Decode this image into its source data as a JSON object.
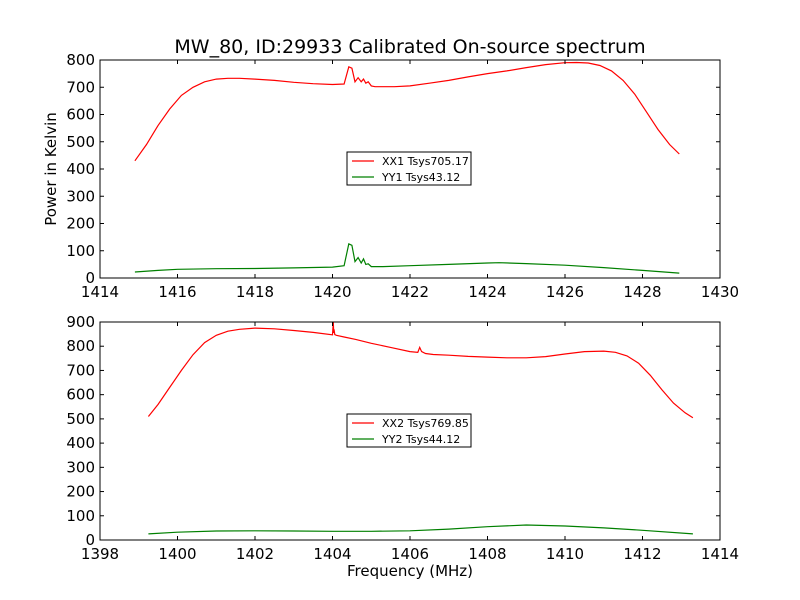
{
  "figure_title": "MW_80, ID:29933 Calibrated On-source spectrum",
  "chart_data": [
    {
      "type": "line",
      "title": "MW_80, ID:29933 Calibrated On-source spectrum",
      "xlabel": "",
      "ylabel": "Power in Kelvin",
      "xlim": [
        1414,
        1430
      ],
      "ylim": [
        0,
        800
      ],
      "xticks": [
        1414,
        1416,
        1418,
        1420,
        1422,
        1424,
        1426,
        1428,
        1430
      ],
      "yticks": [
        0,
        100,
        200,
        300,
        400,
        500,
        600,
        700,
        800
      ],
      "legend_position": "center",
      "grid": false,
      "series": [
        {
          "name": "XX1 Tsys705.17",
          "color": "#ff0000",
          "x": [
            1414.9,
            1415.2,
            1415.5,
            1415.8,
            1416.1,
            1416.4,
            1416.7,
            1417.0,
            1417.3,
            1417.6,
            1418.0,
            1418.5,
            1419.0,
            1419.5,
            1420.0,
            1420.3,
            1420.42,
            1420.5,
            1420.58,
            1420.66,
            1420.74,
            1420.8,
            1420.86,
            1420.92,
            1421.0,
            1421.1,
            1421.3,
            1421.6,
            1422.0,
            1422.5,
            1423.0,
            1423.5,
            1424.0,
            1424.5,
            1425.0,
            1425.5,
            1426.0,
            1426.3,
            1426.6,
            1426.9,
            1427.2,
            1427.5,
            1427.8,
            1428.1,
            1428.4,
            1428.7,
            1428.95
          ],
          "y": [
            430,
            490,
            560,
            620,
            670,
            700,
            720,
            730,
            733,
            733,
            730,
            725,
            718,
            713,
            710,
            712,
            775,
            770,
            720,
            735,
            720,
            730,
            715,
            720,
            705,
            702,
            702,
            702,
            705,
            715,
            725,
            738,
            750,
            760,
            772,
            783,
            790,
            791,
            789,
            780,
            760,
            725,
            675,
            610,
            545,
            490,
            455
          ]
        },
        {
          "name": "YY1 Tsys43.12",
          "color": "#008000",
          "x": [
            1414.9,
            1415.5,
            1416.0,
            1417.0,
            1418.0,
            1419.0,
            1420.0,
            1420.3,
            1420.42,
            1420.5,
            1420.58,
            1420.66,
            1420.74,
            1420.8,
            1420.86,
            1420.92,
            1421.0,
            1421.3,
            1422.0,
            1423.0,
            1424.0,
            1424.3,
            1425.0,
            1426.0,
            1427.0,
            1428.0,
            1428.95
          ],
          "y": [
            22,
            28,
            32,
            34,
            35,
            37,
            40,
            45,
            125,
            120,
            60,
            75,
            55,
            70,
            50,
            52,
            42,
            42,
            45,
            50,
            55,
            56,
            53,
            47,
            38,
            28,
            18
          ]
        }
      ]
    },
    {
      "type": "line",
      "title": "",
      "xlabel": "Frequency (MHz)",
      "ylabel": "",
      "xlim": [
        1398,
        1414
      ],
      "ylim": [
        0,
        900
      ],
      "xticks": [
        1398,
        1400,
        1402,
        1404,
        1406,
        1408,
        1410,
        1412,
        1414
      ],
      "yticks": [
        0,
        100,
        200,
        300,
        400,
        500,
        600,
        700,
        800,
        900
      ],
      "legend_position": "center",
      "grid": false,
      "series": [
        {
          "name": "XX2 Tsys769.85",
          "color": "#ff0000",
          "x": [
            1399.25,
            1399.5,
            1399.8,
            1400.1,
            1400.4,
            1400.7,
            1401.0,
            1401.3,
            1401.6,
            1402.0,
            1402.5,
            1403.0,
            1403.5,
            1404.0,
            1404.02,
            1404.03,
            1404.04,
            1404.06,
            1404.1,
            1404.3,
            1404.6,
            1405.0,
            1405.5,
            1406.0,
            1406.2,
            1406.25,
            1406.3,
            1406.4,
            1406.6,
            1407.0,
            1407.5,
            1408.0,
            1408.5,
            1409.0,
            1409.5,
            1410.0,
            1410.5,
            1411.0,
            1411.3,
            1411.6,
            1411.9,
            1412.2,
            1412.5,
            1412.8,
            1413.1,
            1413.3
          ],
          "y": [
            510,
            560,
            630,
            700,
            765,
            815,
            845,
            862,
            870,
            875,
            872,
            865,
            857,
            847,
            900,
            855,
            870,
            848,
            845,
            838,
            828,
            812,
            795,
            778,
            775,
            795,
            778,
            770,
            766,
            763,
            758,
            755,
            752,
            752,
            757,
            768,
            778,
            780,
            775,
            760,
            730,
            680,
            620,
            565,
            525,
            505
          ]
        },
        {
          "name": "YY2 Tsys44.12",
          "color": "#008000",
          "x": [
            1399.25,
            1400.0,
            1401.0,
            1402.0,
            1403.0,
            1404.0,
            1405.0,
            1406.0,
            1407.0,
            1408.0,
            1409.0,
            1410.0,
            1411.0,
            1412.0,
            1413.3
          ],
          "y": [
            25,
            32,
            37,
            38,
            37,
            36,
            36,
            38,
            45,
            55,
            62,
            58,
            50,
            40,
            25
          ]
        }
      ]
    }
  ]
}
